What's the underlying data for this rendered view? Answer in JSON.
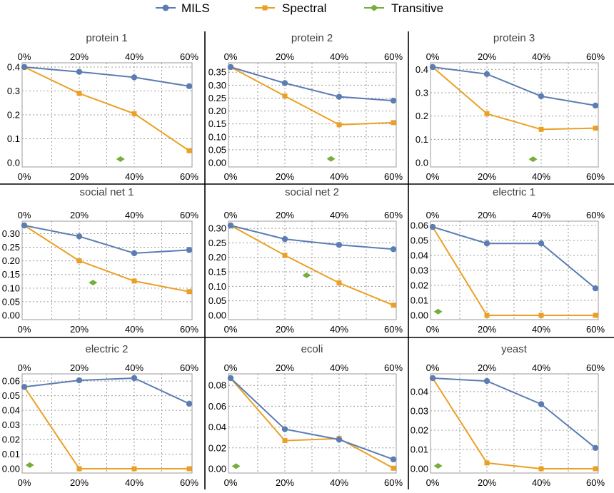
{
  "legend": [
    {
      "name": "MILS",
      "color": "#5b7db3",
      "marker": "circle"
    },
    {
      "name": "Spectral",
      "color": "#eba024",
      "marker": "square"
    },
    {
      "name": "Transitive",
      "color": "#76ae3c",
      "marker": "diamond"
    }
  ],
  "chart_data": [
    {
      "type": "line",
      "title": "protein 1",
      "x": [
        0,
        20,
        40,
        60
      ],
      "x_tick_labels": [
        "0%",
        "20%",
        "40%",
        "60%"
      ],
      "ylim": [
        0,
        0.4
      ],
      "yticks": [
        0,
        0.1,
        0.2,
        0.3,
        0.4
      ],
      "y_tick_labels": [
        "0.0",
        "0.1",
        "0.2",
        "0.3",
        "0.4"
      ],
      "series": [
        {
          "name": "MILS",
          "values": [
            0.4,
            0.38,
            0.357,
            0.32
          ]
        },
        {
          "name": "Spectral",
          "values": [
            0.4,
            0.29,
            0.205,
            0.05
          ]
        }
      ],
      "transitive": {
        "x": 35,
        "y": 0.015
      }
    },
    {
      "type": "line",
      "title": "protein 2",
      "x": [
        0,
        20,
        40,
        60
      ],
      "x_tick_labels": [
        "0%",
        "20%",
        "40%",
        "60%"
      ],
      "ylim": [
        0,
        0.37
      ],
      "yticks": [
        0,
        0.05,
        0.1,
        0.15,
        0.2,
        0.25,
        0.3,
        0.35
      ],
      "y_tick_labels": [
        "0.00",
        "0.05",
        "0.10",
        "0.15",
        "0.20",
        "0.25",
        "0.30",
        "0.35"
      ],
      "series": [
        {
          "name": "MILS",
          "values": [
            0.37,
            0.308,
            0.255,
            0.24
          ]
        },
        {
          "name": "Spectral",
          "values": [
            0.37,
            0.258,
            0.147,
            0.155
          ]
        }
      ],
      "transitive": {
        "x": 37,
        "y": 0.015
      }
    },
    {
      "type": "line",
      "title": "protein 3",
      "x": [
        0,
        20,
        40,
        60
      ],
      "x_tick_labels": [
        "0%",
        "20%",
        "40%",
        "60%"
      ],
      "ylim": [
        0,
        0.41
      ],
      "yticks": [
        0,
        0.1,
        0.2,
        0.3,
        0.4
      ],
      "y_tick_labels": [
        "0.0",
        "0.1",
        "0.2",
        "0.3",
        "0.4"
      ],
      "series": [
        {
          "name": "MILS",
          "values": [
            0.41,
            0.38,
            0.285,
            0.245
          ]
        },
        {
          "name": "Spectral",
          "values": [
            0.41,
            0.21,
            0.143,
            0.148
          ]
        }
      ],
      "transitive": {
        "x": 37,
        "y": 0.015
      }
    },
    {
      "type": "line",
      "title": "social net 1",
      "x": [
        0,
        20,
        40,
        60
      ],
      "x_tick_labels": [
        "0%",
        "20%",
        "40%",
        "60%"
      ],
      "ylim": [
        0,
        0.33
      ],
      "yticks": [
        0,
        0.05,
        0.1,
        0.15,
        0.2,
        0.25,
        0.3
      ],
      "y_tick_labels": [
        "0.00",
        "0.05",
        "0.10",
        "0.15",
        "0.20",
        "0.25",
        "0.30"
      ],
      "series": [
        {
          "name": "MILS",
          "values": [
            0.33,
            0.29,
            0.228,
            0.24
          ]
        },
        {
          "name": "Spectral",
          "values": [
            0.33,
            0.2,
            0.126,
            0.087
          ]
        }
      ],
      "transitive": {
        "x": 25,
        "y": 0.12
      }
    },
    {
      "type": "line",
      "title": "social net 2",
      "x": [
        0,
        20,
        40,
        60
      ],
      "x_tick_labels": [
        "0%",
        "20%",
        "40%",
        "60%"
      ],
      "ylim": [
        0,
        0.31
      ],
      "yticks": [
        0,
        0.05,
        0.1,
        0.15,
        0.2,
        0.25,
        0.3
      ],
      "y_tick_labels": [
        "0.00",
        "0.05",
        "0.10",
        "0.15",
        "0.20",
        "0.25",
        "0.30"
      ],
      "series": [
        {
          "name": "MILS",
          "values": [
            0.31,
            0.263,
            0.243,
            0.228
          ]
        },
        {
          "name": "Spectral",
          "values": [
            0.31,
            0.207,
            0.112,
            0.035
          ]
        }
      ],
      "transitive": {
        "x": 28,
        "y": 0.138
      }
    },
    {
      "type": "line",
      "title": "electric 1",
      "x": [
        0,
        20,
        40,
        60
      ],
      "x_tick_labels": [
        "0%",
        "20%",
        "40%",
        "60%"
      ],
      "ylim": [
        0,
        0.06
      ],
      "yticks": [
        0,
        0.01,
        0.02,
        0.03,
        0.04,
        0.05,
        0.06
      ],
      "y_tick_labels": [
        "0.00",
        "0.01",
        "0.02",
        "0.03",
        "0.04",
        "0.05",
        "0.06"
      ],
      "series": [
        {
          "name": "MILS",
          "values": [
            0.059,
            0.048,
            0.048,
            0.018
          ]
        },
        {
          "name": "Spectral",
          "values": [
            0.059,
            0,
            0,
            0
          ]
        }
      ],
      "transitive": {
        "x": 2,
        "y": 0.0025
      }
    },
    {
      "type": "line",
      "title": "electric 2",
      "x": [
        0,
        20,
        40,
        60
      ],
      "x_tick_labels": [
        "0%",
        "20%",
        "40%",
        "60%"
      ],
      "ylim": [
        0,
        0.062
      ],
      "yticks": [
        0,
        0.01,
        0.02,
        0.03,
        0.04,
        0.05,
        0.06
      ],
      "y_tick_labels": [
        "0.00",
        "0.01",
        "0.02",
        "0.03",
        "0.04",
        "0.05",
        "0.06"
      ],
      "series": [
        {
          "name": "MILS",
          "values": [
            0.056,
            0.0605,
            0.062,
            0.0445
          ]
        },
        {
          "name": "Spectral",
          "values": [
            0.056,
            0,
            0,
            0
          ]
        }
      ],
      "transitive": {
        "x": 2,
        "y": 0.0025
      }
    },
    {
      "type": "line",
      "title": "ecoli",
      "x": [
        0,
        20,
        40,
        60
      ],
      "x_tick_labels": [
        "0%",
        "20%",
        "40%",
        "60%"
      ],
      "ylim": [
        0,
        0.087
      ],
      "yticks": [
        0,
        0.02,
        0.04,
        0.06,
        0.08
      ],
      "y_tick_labels": [
        "0.00",
        "0.02",
        "0.04",
        "0.06",
        "0.08"
      ],
      "series": [
        {
          "name": "MILS",
          "values": [
            0.087,
            0.038,
            0.028,
            0.009
          ]
        },
        {
          "name": "Spectral",
          "values": [
            0.087,
            0.027,
            0.029,
            0.0005
          ]
        }
      ],
      "transitive": {
        "x": 2,
        "y": 0.0025
      }
    },
    {
      "type": "line",
      "title": "yeast",
      "x": [
        0,
        20,
        40,
        60
      ],
      "x_tick_labels": [
        "0%",
        "20%",
        "40%",
        "60%"
      ],
      "ylim": [
        0,
        0.047
      ],
      "yticks": [
        0,
        0.01,
        0.02,
        0.03,
        0.04
      ],
      "y_tick_labels": [
        "0.00",
        "0.01",
        "0.02",
        "0.03",
        "0.04"
      ],
      "series": [
        {
          "name": "MILS",
          "values": [
            0.047,
            0.0455,
            0.0335,
            0.0108
          ]
        },
        {
          "name": "Spectral",
          "values": [
            0.047,
            0.003,
            0,
            0
          ]
        }
      ],
      "transitive": {
        "x": 2,
        "y": 0.0015
      }
    }
  ]
}
